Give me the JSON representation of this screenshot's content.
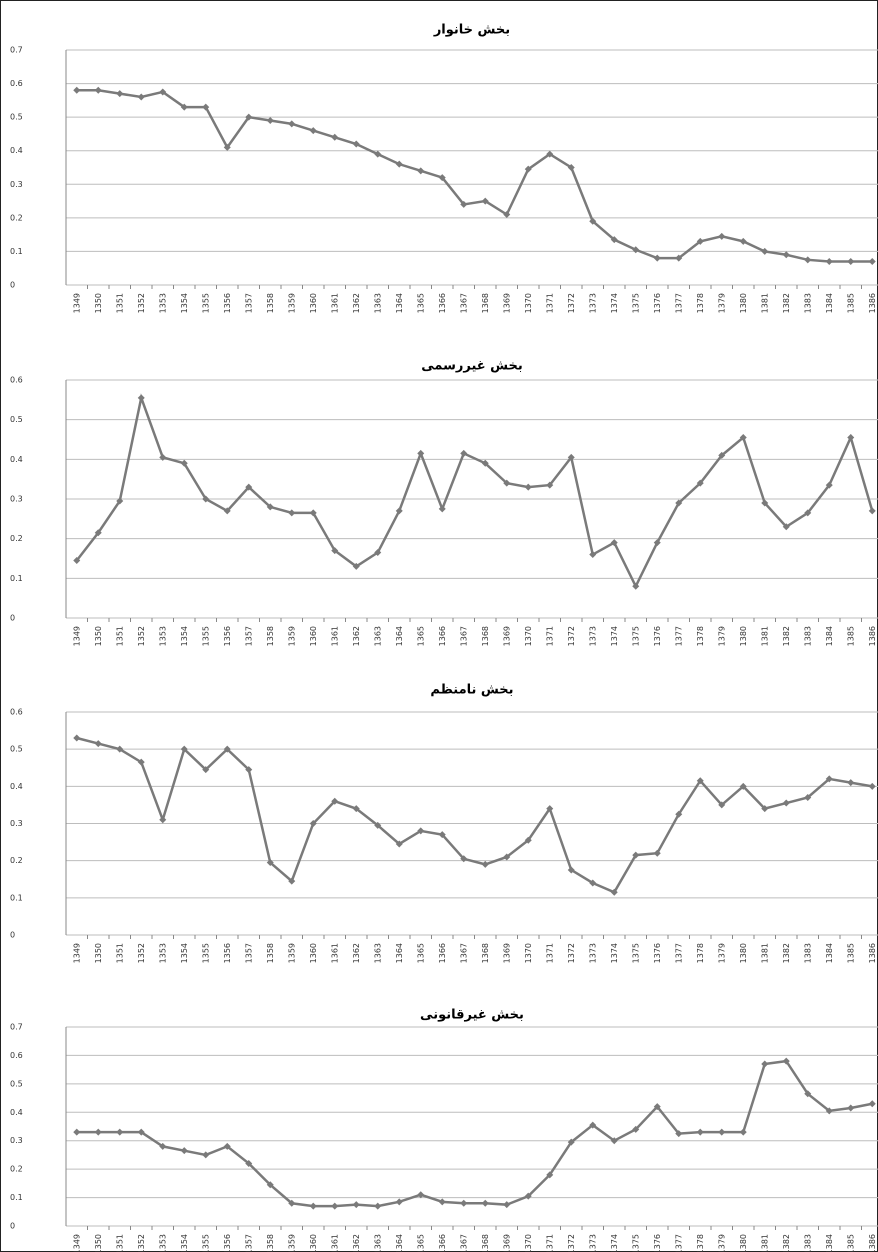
{
  "chart_data": [
    {
      "type": "line",
      "title": "بخش خانوار",
      "categories": [
        "1349",
        "1350",
        "1351",
        "1352",
        "1353",
        "1354",
        "1355",
        "1356",
        "1357",
        "1358",
        "1359",
        "1360",
        "1361",
        "1362",
        "1363",
        "1364",
        "1365",
        "1366",
        "1367",
        "1368",
        "1369",
        "1370",
        "1371",
        "1372",
        "1373",
        "1374",
        "1375",
        "1376",
        "1377",
        "1378",
        "1379",
        "1380",
        "1381",
        "1382",
        "1383",
        "1384",
        "1385",
        "1386"
      ],
      "values": [
        0.58,
        0.58,
        0.57,
        0.56,
        0.575,
        0.53,
        0.53,
        0.41,
        0.5,
        0.49,
        0.48,
        0.46,
        0.44,
        0.42,
        0.39,
        0.36,
        0.34,
        0.32,
        0.24,
        0.25,
        0.21,
        0.345,
        0.39,
        0.35,
        0.19,
        0.135,
        0.105,
        0.08,
        0.08,
        0.13,
        0.145,
        0.13,
        0.1,
        0.09,
        0.075,
        0.07,
        0.07,
        0.07
      ],
      "color": "#7a7a7a",
      "ylim": [
        0,
        0.7
      ],
      "yticks": [
        0,
        0.1,
        0.2,
        0.3,
        0.4,
        0.5,
        0.6,
        0.7
      ],
      "grid": true
    },
    {
      "type": "line",
      "title": "بخش غیررسمی",
      "categories": [
        "1349",
        "1350",
        "1351",
        "1352",
        "1353",
        "1354",
        "1355",
        "1356",
        "1357",
        "1358",
        "1359",
        "1360",
        "1361",
        "1362",
        "1363",
        "1364",
        "1365",
        "1366",
        "1367",
        "1368",
        "1369",
        "1370",
        "1371",
        "1372",
        "1373",
        "1374",
        "1375",
        "1376",
        "1377",
        "1378",
        "1379",
        "1380",
        "1381",
        "1382",
        "1383",
        "1384",
        "1385",
        "1386"
      ],
      "values": [
        0.145,
        0.215,
        0.295,
        0.555,
        0.405,
        0.39,
        0.3,
        0.27,
        0.33,
        0.28,
        0.265,
        0.265,
        0.17,
        0.13,
        0.165,
        0.27,
        0.415,
        0.275,
        0.415,
        0.39,
        0.34,
        0.33,
        0.335,
        0.405,
        0.16,
        0.19,
        0.08,
        0.19,
        0.29,
        0.34,
        0.41,
        0.455,
        0.29,
        0.23,
        0.265,
        0.335,
        0.455,
        0.27
      ],
      "color": "#7a7a7a",
      "ylim": [
        0,
        0.6
      ],
      "yticks": [
        0,
        0.1,
        0.2,
        0.3,
        0.4,
        0.5,
        0.6
      ],
      "grid": true
    },
    {
      "type": "line",
      "title": "بخش نامنظم",
      "categories": [
        "1349",
        "1350",
        "1351",
        "1352",
        "1353",
        "1354",
        "1355",
        "1356",
        "1357",
        "1358",
        "1359",
        "1360",
        "1361",
        "1362",
        "1363",
        "1364",
        "1365",
        "1366",
        "1367",
        "1368",
        "1369",
        "1370",
        "1371",
        "1372",
        "1373",
        "1374",
        "1375",
        "1376",
        "1377",
        "1378",
        "1379",
        "1380",
        "1381",
        "1382",
        "1383",
        "1384",
        "1385",
        "1386"
      ],
      "values": [
        0.53,
        0.515,
        0.5,
        0.465,
        0.31,
        0.5,
        0.445,
        0.5,
        0.445,
        0.195,
        0.145,
        0.3,
        0.36,
        0.34,
        0.295,
        0.245,
        0.28,
        0.27,
        0.205,
        0.19,
        0.21,
        0.255,
        0.34,
        0.175,
        0.14,
        0.115,
        0.215,
        0.22,
        0.325,
        0.415,
        0.35,
        0.4,
        0.34,
        0.355,
        0.37,
        0.42,
        0.41,
        0.4
      ],
      "color": "#7a7a7a",
      "ylim": [
        0,
        0.6
      ],
      "yticks": [
        0,
        0.1,
        0.2,
        0.3,
        0.4,
        0.5,
        0.6
      ],
      "grid": true
    },
    {
      "type": "line",
      "title": "بخش غیرقانونی",
      "categories": [
        "1349",
        "1350",
        "1351",
        "1352",
        "1353",
        "1354",
        "1355",
        "1356",
        "1357",
        "1358",
        "1359",
        "1360",
        "1361",
        "1362",
        "1363",
        "1364",
        "1365",
        "1366",
        "1367",
        "1368",
        "1369",
        "1370",
        "1371",
        "1372",
        "1373",
        "1374",
        "1375",
        "1376",
        "1377",
        "1378",
        "1379",
        "1380",
        "1381",
        "1382",
        "1383",
        "1384",
        "1385",
        "1386"
      ],
      "values": [
        0.33,
        0.33,
        0.33,
        0.33,
        0.28,
        0.265,
        0.25,
        0.28,
        0.22,
        0.145,
        0.08,
        0.07,
        0.07,
        0.075,
        0.07,
        0.085,
        0.11,
        0.085,
        0.08,
        0.08,
        0.075,
        0.105,
        0.18,
        0.295,
        0.355,
        0.3,
        0.34,
        0.42,
        0.325,
        0.33,
        0.33,
        0.33,
        0.57,
        0.58,
        0.465,
        0.405,
        0.415,
        0.43
      ],
      "color": "#7a7a7a",
      "ylim": [
        0,
        0.7
      ],
      "yticks": [
        0,
        0.1,
        0.2,
        0.3,
        0.4,
        0.5,
        0.6,
        0.7
      ],
      "grid": true
    }
  ]
}
